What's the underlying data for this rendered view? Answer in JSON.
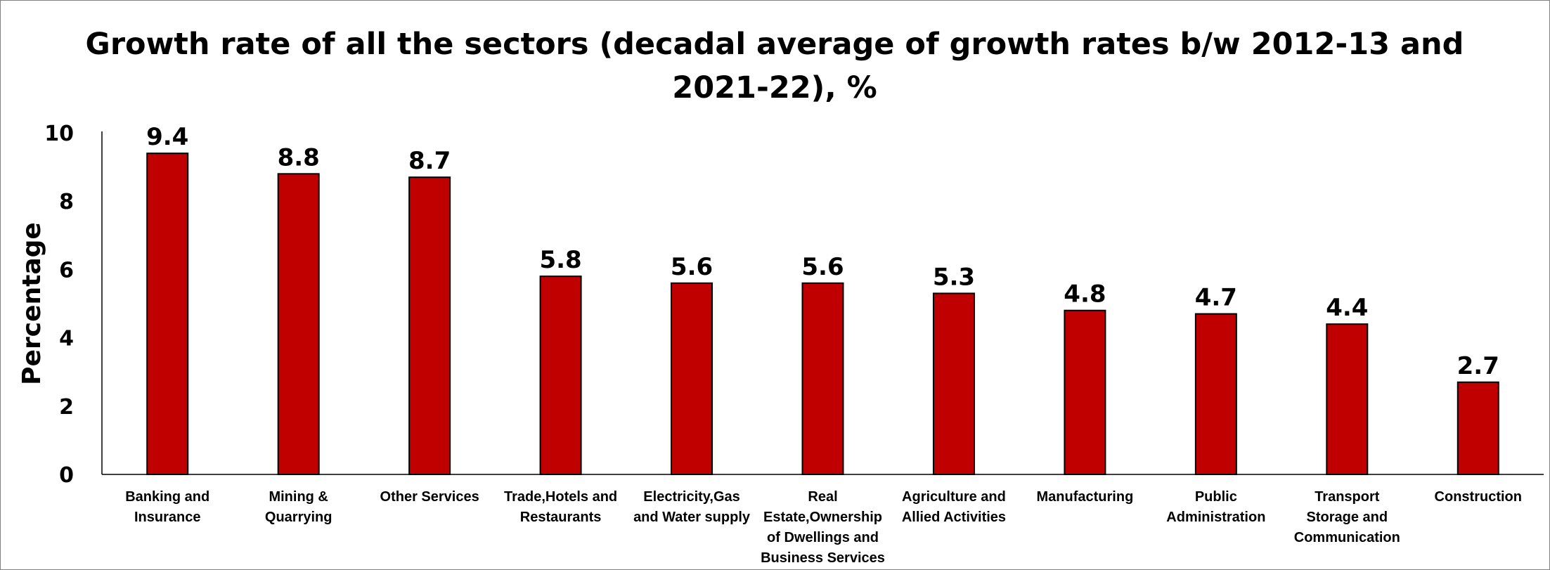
{
  "chart_data": {
    "type": "bar",
    "title_lines": [
      "Growth rate of all the sectors (decadal average of growth rates b/w 2012-13 and",
      "2021-22), %"
    ],
    "xlabel": "",
    "ylabel": "Percentage",
    "ylim": [
      0,
      10
    ],
    "yticks": [
      "0",
      "2",
      "4",
      "6",
      "8",
      "10"
    ],
    "grid": false,
    "legend": "none",
    "bar_color": "#C00000",
    "categories": [
      [
        "Banking and",
        "Insurance"
      ],
      [
        "Mining &",
        "Quarrying"
      ],
      [
        "Other Services"
      ],
      [
        "Trade,Hotels and",
        "Restaurants"
      ],
      [
        "Electricity,Gas",
        "and Water supply"
      ],
      [
        "Real",
        "Estate,Ownership",
        "of Dwellings and",
        "Business Services"
      ],
      [
        "Agriculture and",
        "Allied Activities"
      ],
      [
        "Manufacturing"
      ],
      [
        "Public",
        "Administration"
      ],
      [
        "Transport",
        "Storage and",
        "Communication"
      ],
      [
        "Construction"
      ]
    ],
    "values": [
      9.4,
      8.8,
      8.7,
      5.8,
      5.6,
      5.6,
      5.3,
      4.8,
      4.7,
      4.4,
      2.7
    ],
    "value_labels": [
      "9.4",
      "8.8",
      "8.7",
      "5.8",
      "5.6",
      "5.6",
      "5.3",
      "4.8",
      "4.7",
      "4.4",
      "2.7"
    ]
  }
}
